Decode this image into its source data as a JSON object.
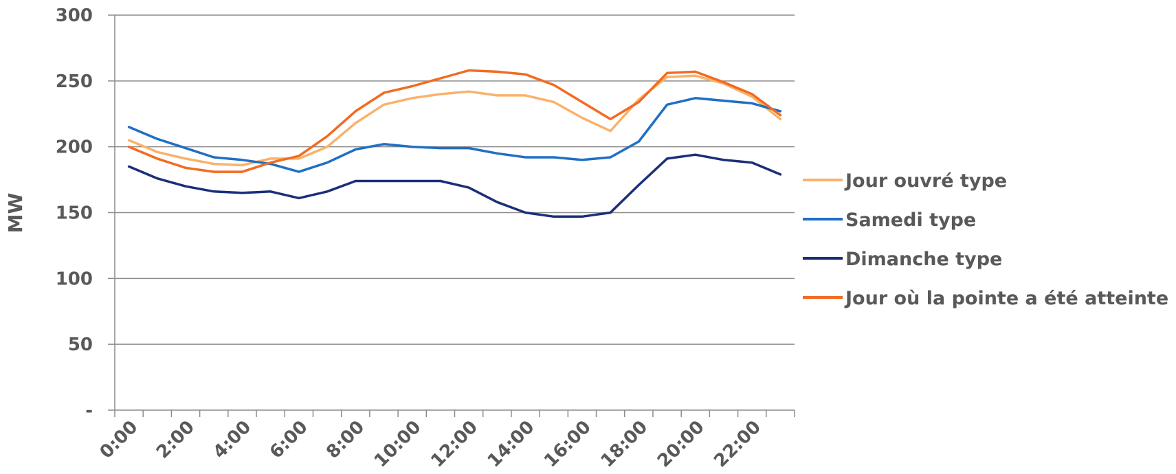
{
  "chart_data": {
    "type": "line",
    "ylabel": "MW",
    "xlabel": "",
    "ylim": [
      0,
      300
    ],
    "yticks": [
      0,
      50,
      100,
      150,
      200,
      250,
      300
    ],
    "ytick_labels": [
      "-",
      "50",
      "100",
      "150",
      "200",
      "250",
      "300"
    ],
    "x_tick_labels": [
      "0:00",
      "2:00",
      "4:00",
      "6:00",
      "8:00",
      "10:00",
      "12:00",
      "14:00",
      "16:00",
      "18:00",
      "20:00",
      "22:00"
    ],
    "grid": "horizontal",
    "legend_position": "right",
    "x": [
      "0:00",
      "1:00",
      "2:00",
      "3:00",
      "4:00",
      "5:00",
      "6:00",
      "7:00",
      "8:00",
      "9:00",
      "10:00",
      "11:00",
      "12:00",
      "13:00",
      "14:00",
      "15:00",
      "16:00",
      "17:00",
      "18:00",
      "19:00",
      "20:00",
      "21:00",
      "22:00",
      "23:00"
    ],
    "series": [
      {
        "name": "Jour ouvré type",
        "color": "#F9B26B",
        "values": [
          205,
          196,
          191,
          187,
          186,
          191,
          191,
          200,
          218,
          232,
          237,
          240,
          242,
          239,
          239,
          234,
          222,
          212,
          236,
          253,
          254,
          248,
          238,
          221
        ]
      },
      {
        "name": "Samedi type",
        "color": "#1F6FC5",
        "values": [
          215,
          206,
          199,
          192,
          190,
          187,
          181,
          188,
          198,
          202,
          200,
          199,
          199,
          195,
          192,
          192,
          190,
          192,
          204,
          232,
          237,
          235,
          233,
          227
        ]
      },
      {
        "name": "Dimanche type",
        "color": "#1A2F7A",
        "values": [
          185,
          176,
          170,
          166,
          165,
          166,
          161,
          166,
          174,
          174,
          174,
          174,
          169,
          158,
          150,
          147,
          147,
          150,
          171,
          191,
          194,
          190,
          188,
          179
        ]
      },
      {
        "name": "Jour où la pointe a été atteinte",
        "color": "#F26B21",
        "values": [
          200,
          191,
          184,
          181,
          181,
          188,
          193,
          208,
          227,
          241,
          246,
          252,
          258,
          257,
          255,
          247,
          234,
          221,
          234,
          256,
          257,
          249,
          240,
          224
        ]
      }
    ]
  }
}
